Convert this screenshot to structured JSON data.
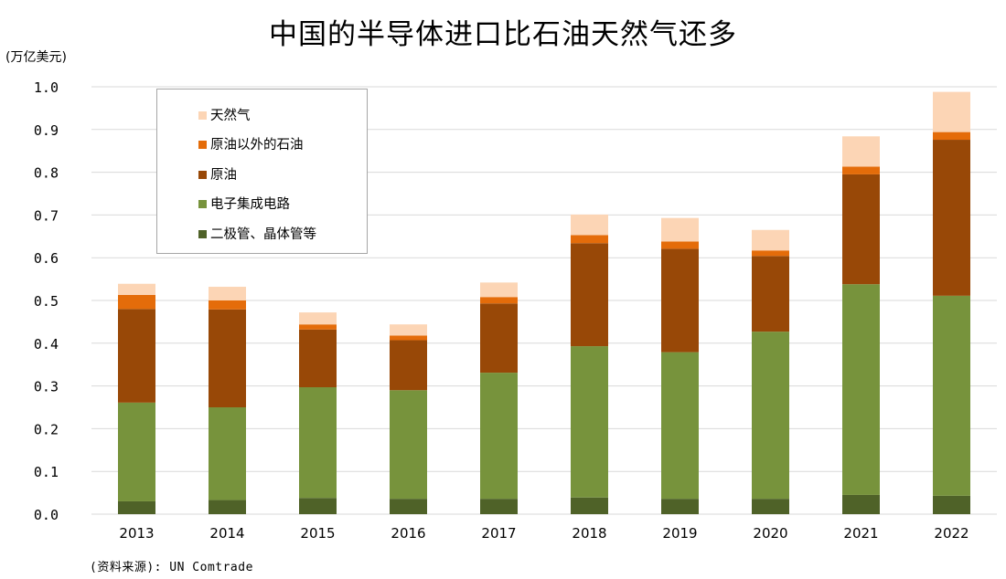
{
  "chart_data": {
    "type": "bar",
    "stacked": true,
    "title": "中国的半导体进口比石油天然气还多",
    "ylabel": "(万亿美元)",
    "ylim": [
      0,
      1.0
    ],
    "yticks": [
      "0.0",
      "0.1",
      "0.2",
      "0.3",
      "0.4",
      "0.5",
      "0.6",
      "0.7",
      "0.8",
      "0.9",
      "1.0"
    ],
    "categories": [
      "2013",
      "2014",
      "2015",
      "2016",
      "2017",
      "2018",
      "2019",
      "2020",
      "2021",
      "2022"
    ],
    "series": [
      {
        "name": "二极管、晶体管等",
        "color": "#4f6228",
        "values": [
          0.03,
          0.033,
          0.038,
          0.036,
          0.036,
          0.039,
          0.036,
          0.036,
          0.045,
          0.043
        ]
      },
      {
        "name": "电子集成电路",
        "color": "#77933c",
        "values": [
          0.231,
          0.217,
          0.259,
          0.254,
          0.295,
          0.354,
          0.343,
          0.391,
          0.493,
          0.468
        ]
      },
      {
        "name": "原油",
        "color": "#984807",
        "values": [
          0.219,
          0.229,
          0.135,
          0.117,
          0.162,
          0.241,
          0.242,
          0.177,
          0.257,
          0.365
        ]
      },
      {
        "name": "原油以外的石油",
        "color": "#e46c0a",
        "values": [
          0.033,
          0.021,
          0.012,
          0.011,
          0.015,
          0.019,
          0.017,
          0.013,
          0.018,
          0.018
        ]
      },
      {
        "name": "天然气",
        "color": "#fcd5b5",
        "values": [
          0.026,
          0.032,
          0.028,
          0.026,
          0.034,
          0.048,
          0.055,
          0.048,
          0.071,
          0.094
        ]
      }
    ],
    "legend_position": "top-left",
    "grid": true,
    "source": "(资料来源): UN Comtrade"
  }
}
